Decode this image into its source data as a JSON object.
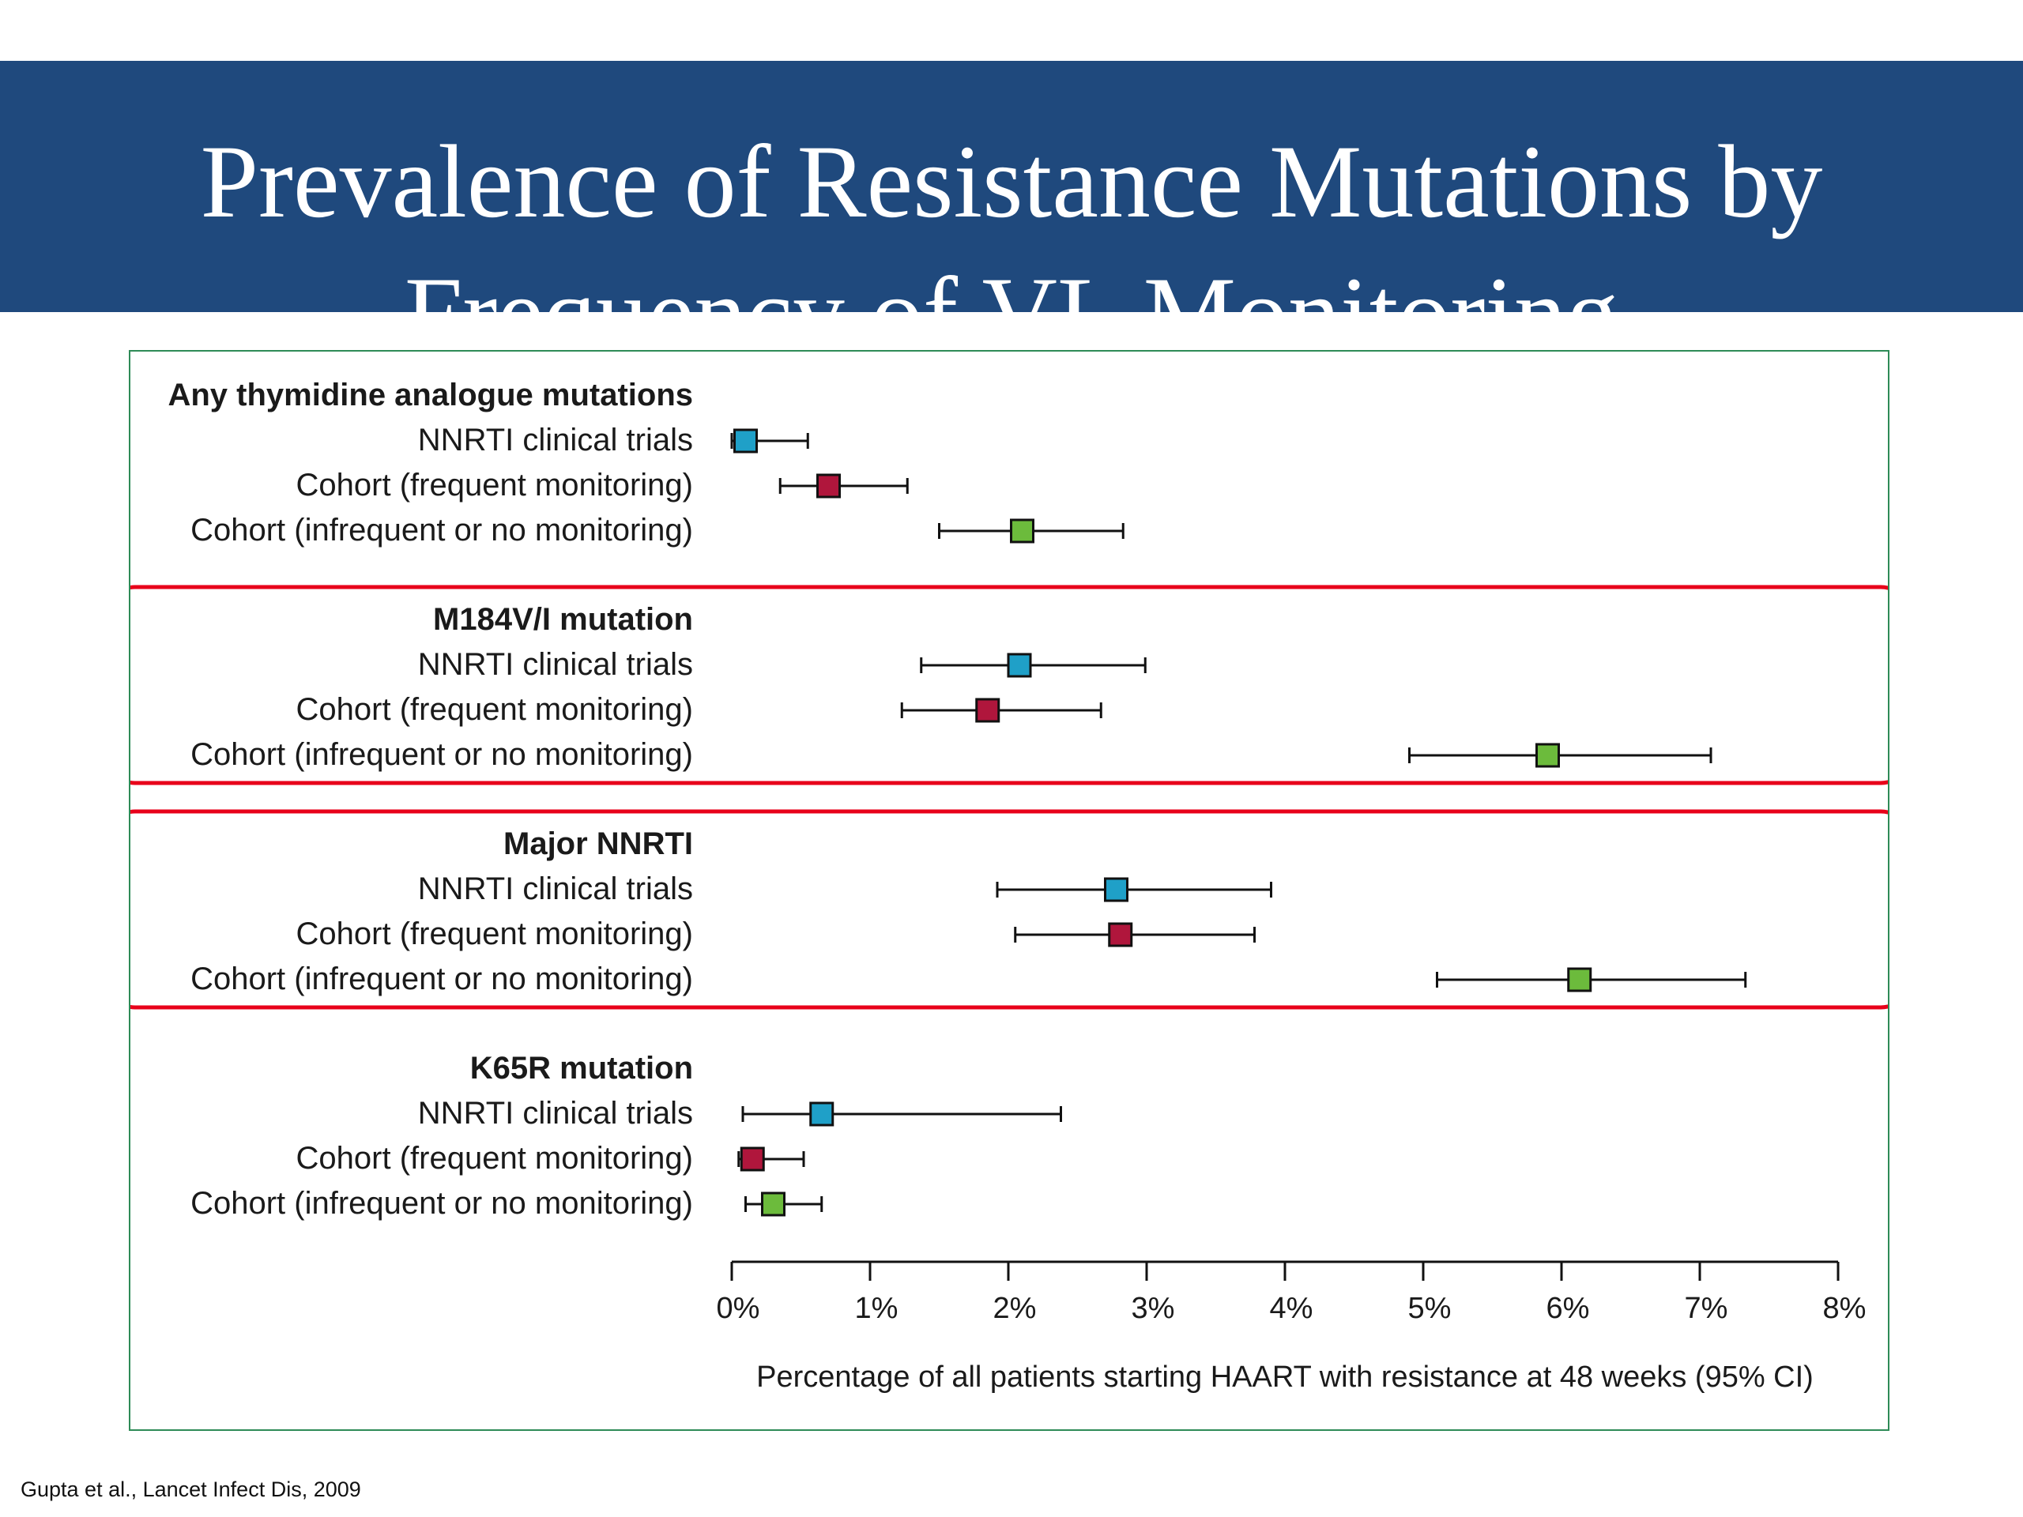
{
  "slide": {
    "title_lines": [
      "Prevalence of Resistance Mutations by",
      "Frequency of VL Monitoring"
    ],
    "citation": "Gupta et al., Lancet Infect Dis, 2009"
  },
  "colors": {
    "title_background": "#1f497d",
    "frame_border": "#2e8b57",
    "highlight_box": "#e8001a",
    "NNRTI clinical trials": "#1fa0c8",
    "Cohort (frequent monitoring)": "#b0163c",
    "Cohort (infrequent or no monitoring)": "#6cbb3c"
  },
  "chart_data": {
    "type": "forest",
    "xlabel": "Percentage of all patients starting HAART with resistance at 48 weeks (95% CI)",
    "ylabel": "",
    "xlim": [
      0,
      8
    ],
    "x_tick_labels": [
      "0%",
      "1%",
      "2%",
      "3%",
      "4%",
      "5%",
      "6%",
      "7%",
      "8%"
    ],
    "highlighted_groups": [
      "M184V/I mutation",
      "Major NNRTI"
    ],
    "groups": [
      {
        "name": "Any thymidine analogue mutations",
        "rows": [
          {
            "label": "NNRTI clinical trials",
            "estimate": 0.1,
            "lower": 0.0,
            "upper": 0.55
          },
          {
            "label": "Cohort (frequent monitoring)",
            "estimate": 0.7,
            "lower": 0.35,
            "upper": 1.27
          },
          {
            "label": "Cohort (infrequent or no monitoring)",
            "estimate": 2.1,
            "lower": 1.5,
            "upper": 2.83
          }
        ]
      },
      {
        "name": "M184V/I mutation",
        "rows": [
          {
            "label": "NNRTI clinical trials",
            "estimate": 2.08,
            "lower": 1.37,
            "upper": 2.99
          },
          {
            "label": "Cohort (frequent monitoring)",
            "estimate": 1.85,
            "lower": 1.23,
            "upper": 2.67
          },
          {
            "label": "Cohort (infrequent or no monitoring)",
            "estimate": 5.9,
            "lower": 4.9,
            "upper": 7.08
          }
        ]
      },
      {
        "name": "Major NNRTI",
        "rows": [
          {
            "label": "NNRTI clinical trials",
            "estimate": 2.78,
            "lower": 1.92,
            "upper": 3.9
          },
          {
            "label": "Cohort (frequent monitoring)",
            "estimate": 2.81,
            "lower": 2.05,
            "upper": 3.78
          },
          {
            "label": "Cohort (infrequent or no monitoring)",
            "estimate": 6.13,
            "lower": 5.1,
            "upper": 7.33
          }
        ]
      },
      {
        "name": "K65R mutation",
        "rows": [
          {
            "label": "NNRTI clinical trials",
            "estimate": 0.65,
            "lower": 0.08,
            "upper": 2.38
          },
          {
            "label": "Cohort (frequent monitoring)",
            "estimate": 0.15,
            "lower": 0.05,
            "upper": 0.52
          },
          {
            "label": "Cohort (infrequent or no monitoring)",
            "estimate": 0.3,
            "lower": 0.1,
            "upper": 0.65
          }
        ]
      }
    ]
  }
}
